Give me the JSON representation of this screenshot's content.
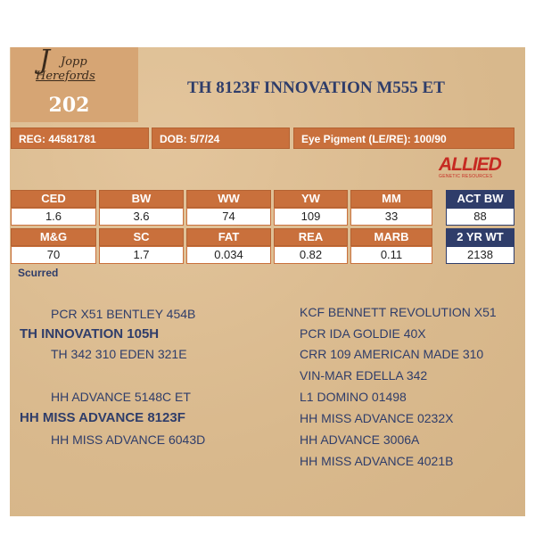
{
  "logo": {
    "line1": "Jopp",
    "line2": "Herefords",
    "initial": "J"
  },
  "lot_number": "202",
  "title": "TH 8123F INNOVATION M555 ET",
  "info": {
    "reg": "REG: 44581781",
    "dob": "DOB: 5/7/24",
    "eye": "Eye Pigment (LE/RE): 100/90"
  },
  "allied_logo": {
    "word": "ALLIED",
    "sub": "GENETIC RESOURCES"
  },
  "epd_row1": {
    "headers": [
      "CED",
      "BW",
      "WW",
      "YW",
      "MM"
    ],
    "values": [
      "1.6",
      "3.6",
      "74",
      "109",
      "33"
    ]
  },
  "epd_row2": {
    "headers": [
      "M&G",
      "SC",
      "FAT",
      "REA",
      "MARB"
    ],
    "values": [
      "70",
      "1.7",
      "0.034",
      "0.82",
      "0.11"
    ]
  },
  "actual": {
    "act_bw_label": "ACT BW",
    "act_bw_value": "88",
    "yr_wt_label": "2 YR WT",
    "yr_wt_value": "2138"
  },
  "note": "Scurred",
  "pedigree_left": [
    "PCR X51 BENTLEY 454B",
    "TH INNOVATION 105H",
    "TH 342 310 EDEN 321E",
    "HH ADVANCE 5148C ET",
    "HH MISS ADVANCE 8123F",
    "HH MISS ADVANCE 6043D"
  ],
  "pedigree_right": [
    "KCF BENNETT REVOLUTION X51",
    "PCR IDA GOLDIE 40X",
    "CRR 109 AMERICAN MADE 310",
    "VIN-MAR EDELLA 342",
    "L1 DOMINO 01498",
    "HH MISS ADVANCE 0232X",
    "HH ADVANCE 3006A",
    "HH MISS ADVANCE 4021B"
  ],
  "colors": {
    "accent": "#c9703c",
    "navy": "#2f3d6a",
    "card": "#dcbd92",
    "allied_red": "#c62a22"
  }
}
